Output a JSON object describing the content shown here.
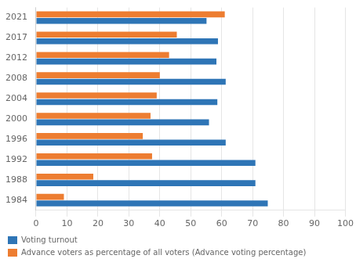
{
  "chart_data": {
    "type": "bar",
    "orientation": "horizontal",
    "categories": [
      "1984",
      "1988",
      "1992",
      "1996",
      "2000",
      "2004",
      "2008",
      "2012",
      "2017",
      "2021"
    ],
    "series": [
      {
        "name": "Voting turnout",
        "color": "#2E75B6",
        "values": [
          74.9,
          70.9,
          70.9,
          61.3,
          55.9,
          58.6,
          61.3,
          58.3,
          58.8,
          55.1
        ]
      },
      {
        "name": "Advance voters as percentage of all voters (Advance voting percentage)",
        "color": "#ED7D31",
        "values": [
          9.0,
          18.5,
          37.5,
          34.5,
          37.0,
          39.0,
          40.0,
          43.0,
          45.5,
          61.0
        ]
      }
    ],
    "xlim": [
      0,
      100
    ],
    "xticks": [
      0,
      10,
      20,
      30,
      40,
      50,
      60,
      70,
      80,
      90,
      100
    ],
    "grid": true,
    "legend": "bottom"
  }
}
